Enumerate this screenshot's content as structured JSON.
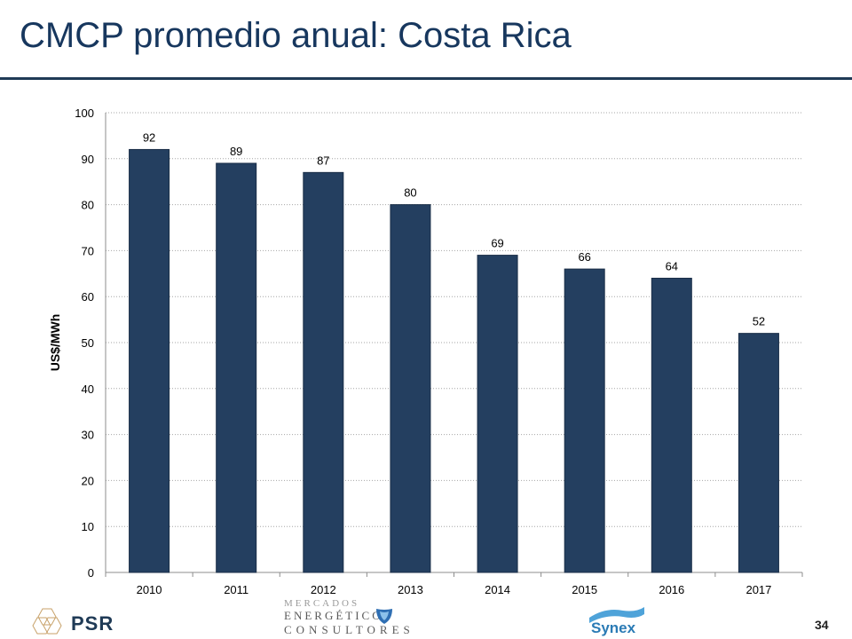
{
  "slide": {
    "title": "CMCP promedio anual: Costa Rica",
    "page_number": "34"
  },
  "chart_data": {
    "type": "bar",
    "categories": [
      "2010",
      "2011",
      "2012",
      "2013",
      "2014",
      "2015",
      "2016",
      "2017"
    ],
    "values": [
      92,
      89,
      87,
      80,
      69,
      66,
      64,
      52
    ],
    "data_labels": [
      "92",
      "89",
      "87",
      "80",
      "69",
      "66",
      "64",
      "52"
    ],
    "title": "",
    "xlabel": "",
    "ylabel": "US$/MWh",
    "ylim": [
      0,
      100
    ],
    "yticks": [
      0,
      10,
      20,
      30,
      40,
      50,
      60,
      70,
      80,
      90,
      100
    ],
    "grid": "horizontal dotted",
    "bar_color": "#243f60"
  },
  "footer": {
    "logos": {
      "psr": "PSR",
      "mec_line1": "MERCADOS",
      "mec_line2": "ENERGÉTICOS",
      "mec_line3": "CONSULTORES",
      "synex": "Synex"
    }
  },
  "colors": {
    "title": "#17375e",
    "rule": "#1f3a56",
    "bar": "#243f60",
    "grid": "#a6a6a6"
  }
}
